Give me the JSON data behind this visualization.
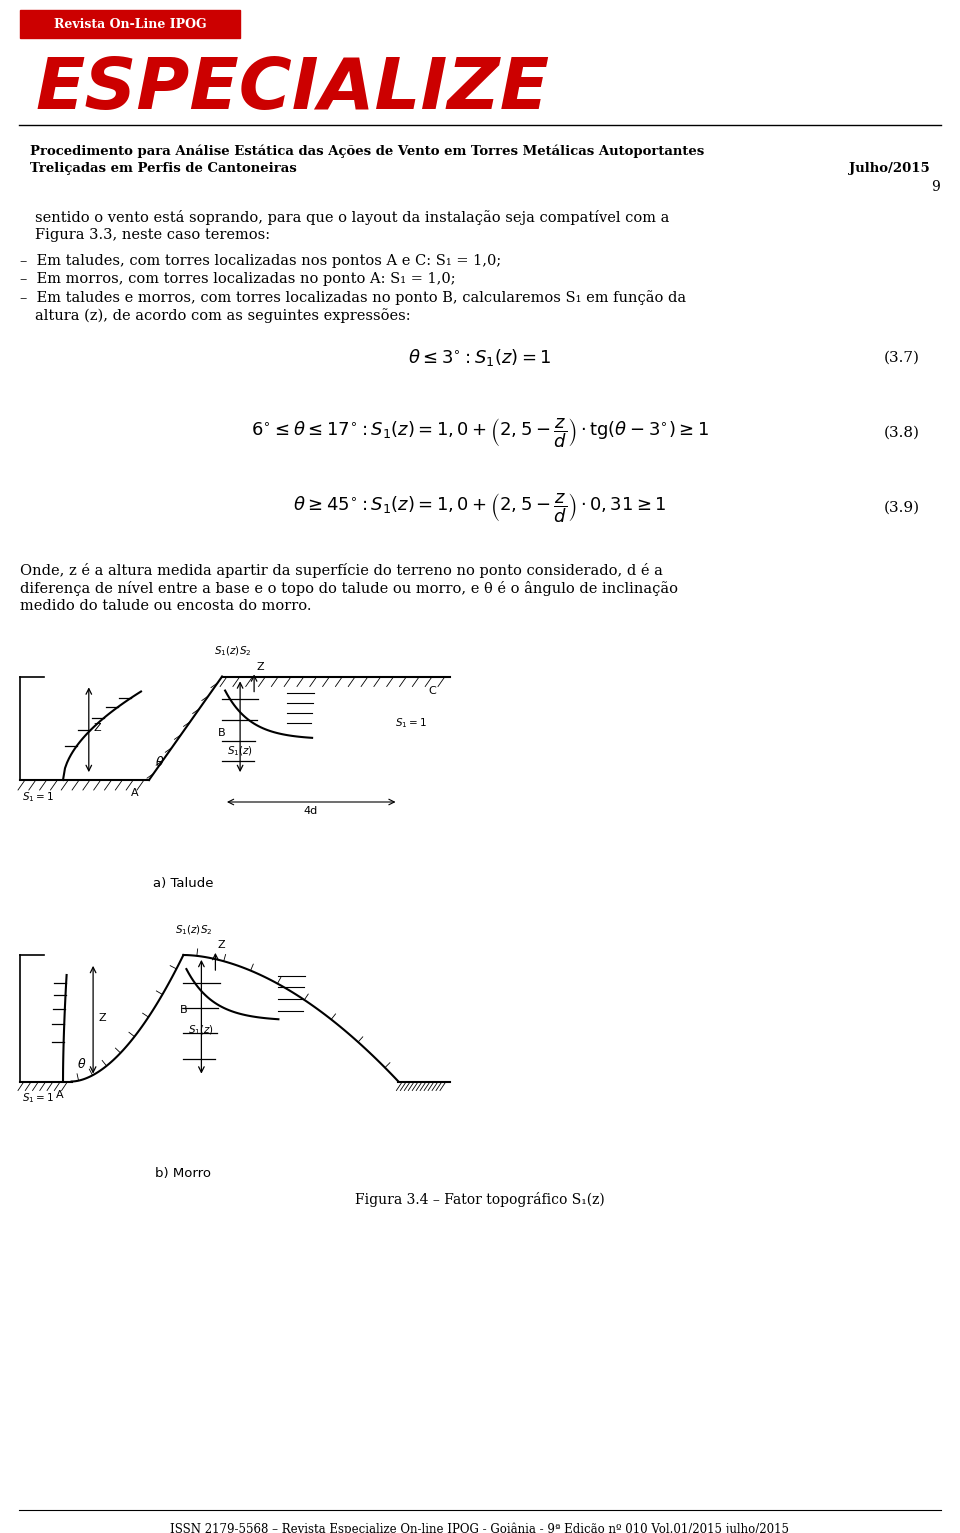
{
  "bg_color": "#ffffff",
  "header_red": "#cc0000",
  "revista_text": "Revista On-Line IPOG",
  "especialize_text": "ESPECIALIZE",
  "header_line1": "Procedimento para Análise Estática das Ações de Vento em Torres Metálicas Autoportantes",
  "header_line2": "Treliçadas em Perfis de Cantoneiras",
  "header_date": "Julho/2015",
  "page_number": "9",
  "para1_line1": "sentido o vento está soprando, para que o layout da instalação seja compatível com a",
  "para1_line2": "Figura 3.3, neste caso teremos:",
  "bullet1": "–  Em taludes, com torres localizadas nos pontos A e C: S₁ = 1,0;",
  "bullet2": "–  Em morros, com torres localizadas no ponto A: S₁ = 1,0;",
  "bullet3_line1": "–  Em taludes e morros, com torres localizadas no ponto B, calcularemos S₁ em função da",
  "bullet3_line2": "altura (z), de acordo com as seguintes expressões:",
  "eq1": "$\\theta \\leq 3^{\\circ}: S_1(z) = 1$",
  "eq1_label": "(3.7)",
  "eq2": "$6^{\\circ} \\leq \\theta \\leq 17^{\\circ}: S_1(z) = 1,0 + \\left(2,5 - \\dfrac{z}{d}\\right) \\cdot \\mathrm{tg}(\\theta - 3^{\\circ}) \\geq 1$",
  "eq2_label": "(3.8)",
  "eq3": "$\\theta \\geq 45^{\\circ}: S_1(z) = 1,0 + \\left(2,5 - \\dfrac{z}{d}\\right) \\cdot 0,31 \\geq 1$",
  "eq3_label": "(3.9)",
  "onde_text_line1": "Onde, z é a altura medida apartir da superfície do terreno no ponto considerado, d é a",
  "onde_text_line2": "diferença de nível entre a base e o topo do talude ou morro, e θ é o ângulo de inclinação",
  "onde_text_line3": "medido do talude ou encosta do morro.",
  "fig_caption": "Figura 3.4 – Fator topográfico S₁(z)",
  "footer_text": "ISSN 2179-5568 – Revista Especialize On-line IPOG - Goiânia - 9ª Edição nº 010 Vol.01/2015 julho/2015"
}
